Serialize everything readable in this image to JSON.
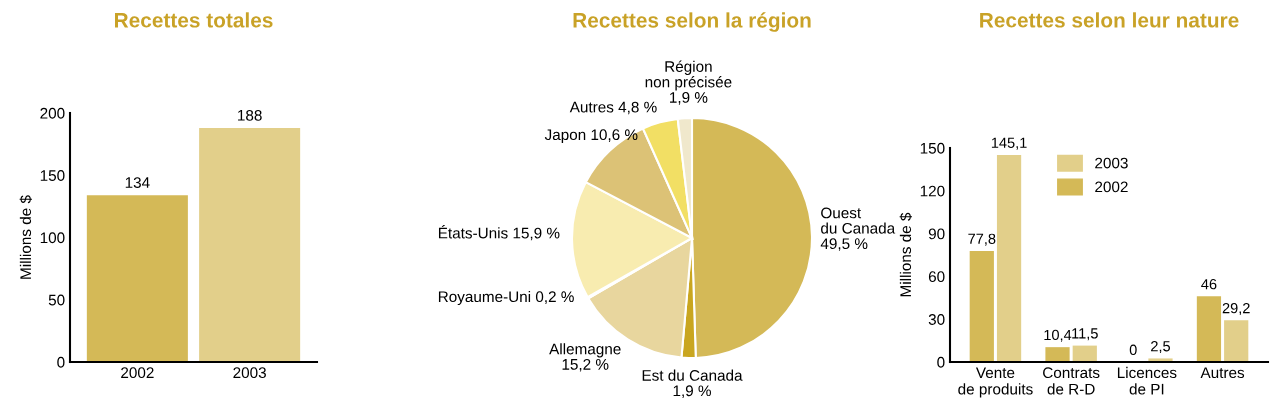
{
  "chart_data": [
    {
      "type": "bar",
      "title": "Recettes totales",
      "ylabel": "Millions de $",
      "categories": [
        "2002",
        "2003"
      ],
      "values": [
        134,
        188
      ],
      "colors": [
        "#d4b957",
        "#e2cf8a"
      ],
      "ylim": [
        0,
        200
      ],
      "yticks": [
        0,
        50,
        100,
        150,
        200
      ],
      "data_labels": true,
      "grid": false,
      "legend": false
    },
    {
      "type": "pie",
      "title": "Recettes selon la région",
      "categories": [
        "Ouest du Canada",
        "Est du Canada",
        "Allemagne",
        "Royaume-Uni",
        "États-Unis",
        "Japon",
        "Autres",
        "Région non précisée"
      ],
      "values": [
        49.5,
        1.9,
        15.2,
        0.2,
        15.9,
        10.6,
        4.8,
        1.9
      ],
      "value_labels": [
        "49,5 %",
        "1,9 %",
        "15,2 %",
        "0,2 %",
        "15,9 %",
        "10,6 %",
        "4,8 %",
        "1,9 %"
      ],
      "colors": [
        "#d4b957",
        "#c9a620",
        "#e8d69e",
        "#f5efd5",
        "#f8ecb0",
        "#dcc276",
        "#f2df64",
        "#f0e8cc"
      ]
    },
    {
      "type": "bar",
      "title": "Recettes selon leur nature",
      "ylabel": "Millions de $",
      "categories": [
        "Vente de produits",
        "Contrats de R-D",
        "Licences de PI",
        "Autres"
      ],
      "series": [
        {
          "name": "2002",
          "color": "#d4b957",
          "values": [
            77.8,
            10.4,
            0,
            46
          ]
        },
        {
          "name": "2003",
          "color": "#e2cf8a",
          "values": [
            145.1,
            11.5,
            2.5,
            29.2
          ]
        }
      ],
      "value_labels": [
        [
          "77,8",
          "10,4",
          "0",
          "46"
        ],
        [
          "145,1",
          "11,5",
          "2,5",
          "29,2"
        ]
      ],
      "ylim": [
        0,
        150
      ],
      "yticks": [
        0,
        30,
        60,
        90,
        120,
        150
      ],
      "grid": false,
      "legend": "top"
    }
  ]
}
